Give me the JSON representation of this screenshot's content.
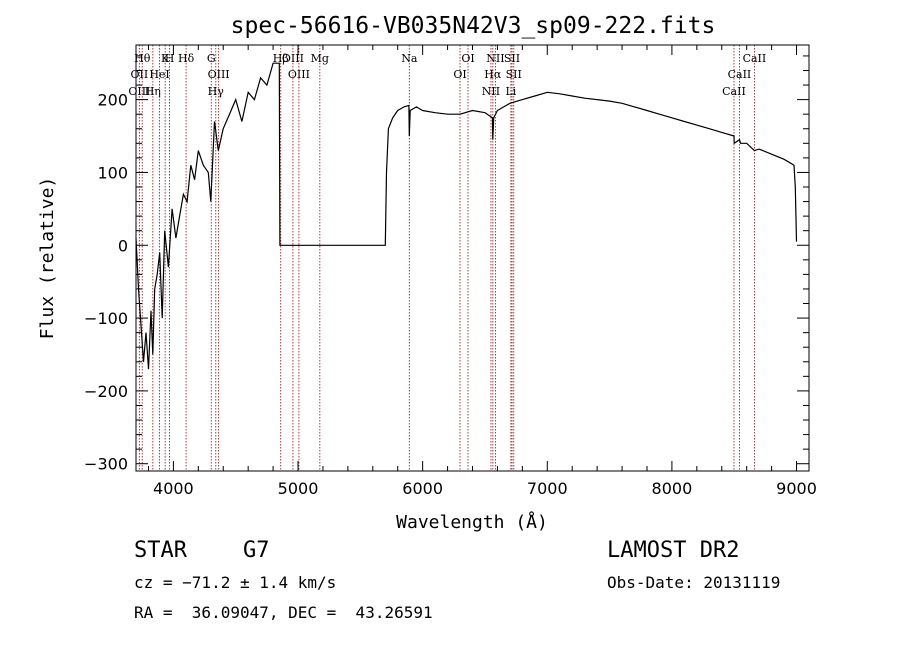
{
  "chart_data": {
    "type": "line",
    "title": "spec-56616-VB035N42V3_sp09-222.fits",
    "xlabel": "Wavelength (Å)",
    "ylabel": "Flux (relative)",
    "xlim": [
      3700,
      9100
    ],
    "ylim": [
      -310,
      275
    ],
    "xticks": [
      4000,
      5000,
      6000,
      7000,
      8000,
      9000
    ],
    "yticks": [
      -300,
      -200,
      -100,
      0,
      100,
      200
    ],
    "x_tick_labels": [
      "4000",
      "5000",
      "6000",
      "7000",
      "8000",
      "9000"
    ],
    "y_tick_labels": [
      "−300",
      "−200",
      "−100",
      "0",
      "100",
      "200"
    ],
    "grid": false,
    "series": [
      {
        "line_color": "#000000",
        "x": [
          3700,
          3720,
          3740,
          3760,
          3780,
          3800,
          3820,
          3835,
          3850,
          3870,
          3890,
          3910,
          3930,
          3960,
          3990,
          4020,
          4050,
          4080,
          4110,
          4140,
          4170,
          4200,
          4240,
          4280,
          4300,
          4330,
          4360,
          4400,
          4450,
          4500,
          4550,
          4600,
          4650,
          4700,
          4750,
          4800,
          4850,
          4855,
          4860,
          5000,
          5200,
          5400,
          5600,
          5700,
          5710,
          5725,
          5760,
          5800,
          5850,
          5890,
          5893,
          5900,
          5950,
          6000,
          6100,
          6200,
          6300,
          6400,
          6500,
          6560,
          6563,
          6570,
          6600,
          6700,
          6800,
          6900,
          7000,
          7100,
          7200,
          7300,
          7400,
          7500,
          7600,
          7700,
          7800,
          7900,
          8000,
          8100,
          8200,
          8300,
          8400,
          8498,
          8500,
          8542,
          8550,
          8600,
          8662,
          8700,
          8800,
          8900,
          8980,
          8990,
          9000
        ],
        "y": [
          10,
          -60,
          -110,
          -160,
          -120,
          -170,
          -90,
          -150,
          -60,
          -40,
          -10,
          -100,
          20,
          -30,
          50,
          10,
          40,
          70,
          60,
          110,
          90,
          130,
          110,
          100,
          60,
          170,
          130,
          160,
          180,
          200,
          170,
          210,
          200,
          230,
          220,
          250,
          250,
          0,
          0,
          0,
          0,
          0,
          0,
          0,
          100,
          160,
          175,
          185,
          190,
          192,
          150,
          185,
          190,
          185,
          182,
          180,
          180,
          185,
          182,
          175,
          145,
          175,
          185,
          195,
          200,
          205,
          210,
          208,
          205,
          202,
          200,
          198,
          195,
          190,
          185,
          180,
          175,
          170,
          165,
          160,
          155,
          150,
          140,
          145,
          140,
          140,
          130,
          132,
          125,
          118,
          110,
          80,
          5
        ]
      }
    ],
    "line_groups": [
      {
        "labels": [
          "Hθ",
          "OII",
          "OIII"
        ],
        "x": [
          3750,
          3727,
          3727
        ]
      },
      {
        "labels": [
          "K",
          "HeI",
          "Hη"
        ],
        "x": [
          3934,
          3889,
          3835
        ]
      },
      {
        "labels": [
          "H"
        ],
        "x": [
          3969
        ]
      },
      {
        "labels": [
          "Hδ"
        ],
        "x": [
          4102
        ]
      },
      {
        "labels": [
          "G",
          "OIII",
          "Hγ"
        ],
        "x": [
          4304,
          4363,
          4340
        ]
      },
      {
        "labels": [
          "Hβ"
        ],
        "x": [
          4861
        ]
      },
      {
        "labels": [
          "OIII",
          "OIII"
        ],
        "x": [
          4959,
          5007
        ]
      },
      {
        "labels": [
          "Mg"
        ],
        "x": [
          5175
        ]
      },
      {
        "labels": [
          "Na"
        ],
        "x": [
          5893
        ]
      },
      {
        "labels": [
          "OI",
          "OI"
        ],
        "x": [
          6364,
          6300
        ]
      },
      {
        "labels": [
          "NII",
          "Hα",
          "NII"
        ],
        "x": [
          6584,
          6563,
          6548
        ]
      },
      {
        "labels": [
          "SII",
          "SII",
          "Li"
        ],
        "x": [
          6717,
          6731,
          6708
        ]
      },
      {
        "labels": [
          "CaII",
          "CaII",
          "CaII"
        ],
        "x": [
          8662,
          8542,
          8498
        ]
      }
    ],
    "marker_lines_x": [
      3727,
      3750,
      3835,
      3889,
      3934,
      3969,
      4102,
      4304,
      4340,
      4363,
      4861,
      4959,
      5007,
      5175,
      5893,
      6300,
      6364,
      6548,
      6563,
      6584,
      6708,
      6717,
      6731,
      8498,
      8542,
      8662
    ],
    "marker_color": "#a0282a"
  },
  "info": {
    "class_label": "STAR",
    "subclass": "G7",
    "survey": "LAMOST DR2",
    "cz": "cz = −71.2 ± 1.4 km/s",
    "obs_date": "Obs-Date: 20131119",
    "radec": "RA =  36.09047, DEC =  43.26591"
  }
}
